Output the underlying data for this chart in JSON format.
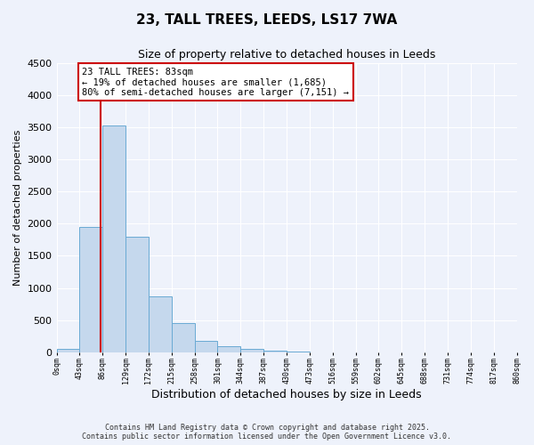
{
  "title": "23, TALL TREES, LEEDS, LS17 7WA",
  "subtitle": "Size of property relative to detached houses in Leeds",
  "xlabel": "Distribution of detached houses by size in Leeds",
  "ylabel": "Number of detached properties",
  "bar_values": [
    50,
    1950,
    3530,
    1800,
    870,
    450,
    175,
    90,
    55,
    30,
    10,
    0,
    0,
    0,
    0,
    0,
    0,
    0,
    0,
    0
  ],
  "bin_labels": [
    "0sqm",
    "43sqm",
    "86sqm",
    "129sqm",
    "172sqm",
    "215sqm",
    "258sqm",
    "301sqm",
    "344sqm",
    "387sqm",
    "430sqm",
    "473sqm",
    "516sqm",
    "559sqm",
    "602sqm",
    "645sqm",
    "688sqm",
    "731sqm",
    "774sqm",
    "817sqm",
    "860sqm"
  ],
  "bar_color": "#c5d8ed",
  "bar_edge_color": "#6aaad4",
  "property_sqm": 83,
  "annotation_text_line1": "23 TALL TREES: 83sqm",
  "annotation_text_line2": "← 19% of detached houses are smaller (1,685)",
  "annotation_text_line3": "80% of semi-detached houses are larger (7,151) →",
  "annotation_box_facecolor": "#ffffff",
  "annotation_box_edgecolor": "#cc0000",
  "vline_color": "#cc0000",
  "ylim": [
    0,
    4500
  ],
  "yticks": [
    0,
    500,
    1000,
    1500,
    2000,
    2500,
    3000,
    3500,
    4000,
    4500
  ],
  "footer_line1": "Contains HM Land Registry data © Crown copyright and database right 2025.",
  "footer_line2": "Contains public sector information licensed under the Open Government Licence v3.0.",
  "background_color": "#eef2fb",
  "grid_color": "#ffffff",
  "grid_linewidth": 0.8,
  "fig_width": 6.0,
  "fig_height": 5.0,
  "dpi": 100
}
